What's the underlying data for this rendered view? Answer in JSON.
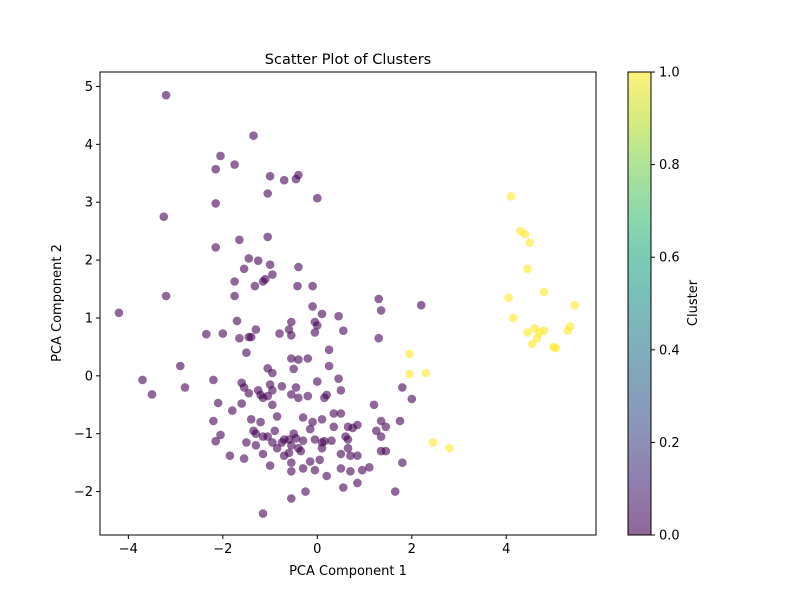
{
  "chart_data": {
    "type": "scatter",
    "title": "Scatter Plot of Clusters",
    "xlabel": "PCA Component 1",
    "ylabel": "PCA Component 2",
    "xlim": [
      -4.6,
      5.9
    ],
    "ylim": [
      -2.75,
      5.25
    ],
    "xticks": [
      -4,
      -2,
      0,
      2,
      4
    ],
    "xtick_labels": [
      "−4",
      "−2",
      "0",
      "2",
      "4"
    ],
    "yticks": [
      -2,
      -1,
      0,
      1,
      2,
      3,
      4,
      5
    ],
    "ytick_labels": [
      "−2",
      "−1",
      "0",
      "1",
      "2",
      "3",
      "4",
      "5"
    ],
    "grid": false,
    "colorbar": {
      "label": "Cluster",
      "range": [
        0.0,
        1.0
      ],
      "ticks": [
        0.0,
        0.2,
        0.4,
        0.6,
        0.8,
        1.0
      ],
      "tick_labels": [
        "0.0",
        "0.2",
        "0.4",
        "0.6",
        "0.8",
        "1.0"
      ],
      "colormap": "viridis",
      "alpha": 0.6
    },
    "colors": {
      "cluster_0": "#440154",
      "cluster_1": "#fde725"
    },
    "series": [
      {
        "cluster": 0,
        "points": [
          [
            -3.2,
            4.85
          ],
          [
            -1.35,
            4.15
          ],
          [
            -2.05,
            3.8
          ],
          [
            -1.75,
            3.65
          ],
          [
            -2.15,
            3.57
          ],
          [
            -1.0,
            3.45
          ],
          [
            -0.4,
            3.47
          ],
          [
            -0.7,
            3.38
          ],
          [
            -0.45,
            3.4
          ],
          [
            -1.05,
            3.15
          ],
          [
            0.0,
            3.07
          ],
          [
            -2.15,
            2.98
          ],
          [
            -3.25,
            2.75
          ],
          [
            -1.65,
            2.35
          ],
          [
            -1.05,
            2.4
          ],
          [
            -2.15,
            2.22
          ],
          [
            -1.45,
            2.03
          ],
          [
            -1.25,
            1.99
          ],
          [
            -1.0,
            1.92
          ],
          [
            -1.55,
            1.85
          ],
          [
            -0.4,
            1.88
          ],
          [
            -0.95,
            1.75
          ],
          [
            -1.15,
            1.63
          ],
          [
            -1.75,
            1.63
          ],
          [
            -1.1,
            1.67
          ],
          [
            -1.32,
            1.55
          ],
          [
            -0.42,
            1.55
          ],
          [
            -0.1,
            1.55
          ],
          [
            -3.2,
            1.38
          ],
          [
            -1.75,
            1.38
          ],
          [
            -0.1,
            1.2
          ],
          [
            -4.2,
            1.09
          ],
          [
            0.1,
            1.07
          ],
          [
            0.45,
            1.03
          ],
          [
            1.3,
            1.33
          ],
          [
            1.35,
            1.13
          ],
          [
            2.2,
            1.22
          ],
          [
            -1.7,
            0.95
          ],
          [
            -0.55,
            0.93
          ],
          [
            -0.05,
            0.93
          ],
          [
            0.0,
            0.87
          ],
          [
            -0.6,
            0.8
          ],
          [
            -1.3,
            0.8
          ],
          [
            -2.0,
            0.73
          ],
          [
            -2.35,
            0.72
          ],
          [
            -1.65,
            0.65
          ],
          [
            -1.45,
            0.67
          ],
          [
            -1.4,
            0.67
          ],
          [
            -0.8,
            0.73
          ],
          [
            -0.55,
            0.7
          ],
          [
            -0.05,
            0.75
          ],
          [
            0.55,
            0.78
          ],
          [
            1.3,
            0.65
          ],
          [
            0.25,
            0.45
          ],
          [
            -1.5,
            0.4
          ],
          [
            -0.55,
            0.3
          ],
          [
            -0.4,
            0.28
          ],
          [
            -0.2,
            0.3
          ],
          [
            0.25,
            0.17
          ],
          [
            -2.9,
            0.17
          ],
          [
            -1.05,
            0.13
          ],
          [
            -0.5,
            0.12
          ],
          [
            -0.95,
            0.05
          ],
          [
            -3.7,
            -0.07
          ],
          [
            -2.2,
            -0.07
          ],
          [
            -1.6,
            -0.12
          ],
          [
            -1.0,
            -0.15
          ],
          [
            0.0,
            -0.1
          ],
          [
            0.45,
            -0.05
          ],
          [
            -0.75,
            -0.18
          ],
          [
            -0.45,
            -0.2
          ],
          [
            -1.55,
            -0.2
          ],
          [
            -2.8,
            -0.2
          ],
          [
            -0.95,
            -0.25
          ],
          [
            -1.25,
            -0.25
          ],
          [
            -1.05,
            -0.35
          ],
          [
            -1.15,
            -0.38
          ],
          [
            -1.45,
            -0.3
          ],
          [
            -1.2,
            -0.33
          ],
          [
            -0.55,
            -0.32
          ],
          [
            -0.4,
            -0.38
          ],
          [
            0.15,
            -0.38
          ],
          [
            0.2,
            -0.33
          ],
          [
            -0.2,
            -0.35
          ],
          [
            0.5,
            -0.25
          ],
          [
            -3.5,
            -0.32
          ],
          [
            -2.1,
            -0.47
          ],
          [
            -1.6,
            -0.48
          ],
          [
            -0.95,
            -0.5
          ],
          [
            1.2,
            -0.5
          ],
          [
            -1.8,
            -0.6
          ],
          [
            -0.85,
            -0.7
          ],
          [
            -0.3,
            -0.72
          ],
          [
            0.1,
            -0.75
          ],
          [
            0.35,
            -0.65
          ],
          [
            0.5,
            -0.65
          ],
          [
            1.8,
            -0.2
          ],
          [
            2.0,
            -0.4
          ],
          [
            -2.2,
            -0.78
          ],
          [
            -1.4,
            -0.75
          ],
          [
            -1.2,
            -0.8
          ],
          [
            -0.1,
            -0.8
          ],
          [
            1.35,
            -0.78
          ],
          [
            1.75,
            -0.78
          ],
          [
            -1.35,
            -0.95
          ],
          [
            -0.9,
            -0.95
          ],
          [
            -0.5,
            -1.0
          ],
          [
            -0.15,
            -0.92
          ],
          [
            0.35,
            -0.88
          ],
          [
            0.65,
            -0.88
          ],
          [
            0.75,
            -0.9
          ],
          [
            0.85,
            -0.85
          ],
          [
            1.25,
            -0.95
          ],
          [
            1.45,
            -0.88
          ],
          [
            -2.05,
            -1.02
          ],
          [
            -1.3,
            -1.0
          ],
          [
            -1.15,
            -1.05
          ],
          [
            -1.05,
            -1.05
          ],
          [
            -0.7,
            -1.1
          ],
          [
            -0.6,
            -1.1
          ],
          [
            -0.75,
            -1.15
          ],
          [
            -0.45,
            -1.08
          ],
          [
            -0.3,
            -1.12
          ],
          [
            -0.05,
            -1.1
          ],
          [
            0.1,
            -1.15
          ],
          [
            0.15,
            -1.13
          ],
          [
            0.3,
            -1.12
          ],
          [
            0.6,
            -1.05
          ],
          [
            0.65,
            -1.1
          ],
          [
            1.35,
            -1.05
          ],
          [
            -2.15,
            -1.13
          ],
          [
            -1.5,
            -1.15
          ],
          [
            -1.3,
            -1.2
          ],
          [
            -0.95,
            -1.15
          ],
          [
            -0.55,
            -1.2
          ],
          [
            -0.85,
            -1.25
          ],
          [
            -0.4,
            -1.25
          ],
          [
            0.1,
            -1.25
          ],
          [
            0.65,
            -1.25
          ],
          [
            0.5,
            -1.35
          ],
          [
            0.7,
            -1.38
          ],
          [
            0.85,
            -1.38
          ],
          [
            1.35,
            -1.3
          ],
          [
            1.45,
            -1.3
          ],
          [
            -1.85,
            -1.38
          ],
          [
            -1.55,
            -1.43
          ],
          [
            -1.15,
            -1.35
          ],
          [
            -0.7,
            -1.38
          ],
          [
            -0.6,
            -1.33
          ],
          [
            -0.35,
            -1.3
          ],
          [
            0.05,
            -1.45
          ],
          [
            -1.0,
            -1.55
          ],
          [
            -0.15,
            -1.48
          ],
          [
            -0.55,
            -1.5
          ],
          [
            0.5,
            -1.6
          ],
          [
            0.95,
            -1.63
          ],
          [
            0.7,
            -1.65
          ],
          [
            -0.55,
            -1.65
          ],
          [
            -0.3,
            -1.6
          ],
          [
            -0.05,
            -1.63
          ],
          [
            1.1,
            -1.58
          ],
          [
            1.8,
            -1.5
          ],
          [
            0.2,
            -1.73
          ],
          [
            0.55,
            -1.93
          ],
          [
            0.85,
            -1.85
          ],
          [
            -0.25,
            -2.0
          ],
          [
            1.65,
            -2.0
          ],
          [
            -0.55,
            -2.12
          ],
          [
            -1.15,
            -2.38
          ]
        ]
      },
      {
        "cluster": 1,
        "points": [
          [
            4.1,
            3.1
          ],
          [
            4.3,
            2.5
          ],
          [
            4.4,
            2.45
          ],
          [
            4.5,
            2.3
          ],
          [
            4.45,
            1.85
          ],
          [
            4.8,
            1.45
          ],
          [
            4.05,
            1.35
          ],
          [
            5.45,
            1.22
          ],
          [
            4.15,
            1.0
          ],
          [
            4.45,
            0.75
          ],
          [
            4.6,
            0.82
          ],
          [
            4.7,
            0.75
          ],
          [
            4.8,
            0.78
          ],
          [
            4.65,
            0.65
          ],
          [
            4.55,
            0.55
          ],
          [
            5.0,
            0.5
          ],
          [
            5.05,
            0.48
          ],
          [
            5.3,
            0.78
          ],
          [
            5.35,
            0.85
          ],
          [
            1.95,
            0.38
          ],
          [
            1.95,
            0.03
          ],
          [
            2.3,
            0.05
          ],
          [
            2.45,
            -1.15
          ],
          [
            2.8,
            -1.25
          ]
        ]
      }
    ]
  }
}
